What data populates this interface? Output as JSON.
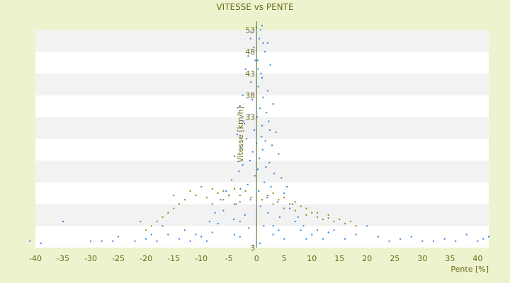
{
  "chart_data": {
    "type": "scatter",
    "title": "VITESSE vs PENTE",
    "xlabel": "Pente [%]",
    "ylabel": "Vitesse [km/h]",
    "xlim": [
      -40,
      42
    ],
    "ylim": [
      3,
      55
    ],
    "x_ticks": [
      -40,
      -35,
      -30,
      -25,
      -20,
      -15,
      -10,
      -5,
      0,
      5,
      10,
      15,
      20,
      25,
      30,
      35,
      40
    ],
    "y_ticks": [
      3,
      8,
      13,
      18,
      23,
      28,
      33,
      38,
      43,
      48,
      53
    ],
    "y_tick_labels_visible": [
      "3",
      "",
      "",
      "",
      "",
      "",
      "33",
      "38",
      "43",
      "48",
      "53"
    ],
    "grid": "horizontal bands",
    "legend": "none",
    "colors": {
      "background": "#eef3cf",
      "plot_band_light": "#ffffff",
      "plot_band_dark": "#f2f2f2",
      "main_series": "#2e86de",
      "secondary_series": "#8a8a1a",
      "axis_text": "#6b6b1a",
      "zero_line": "#4f6b2a"
    },
    "series": [
      {
        "color": "#2e86de",
        "points": [
          [
            0,
            53.5
          ],
          [
            1,
            54
          ],
          [
            -1,
            52.5
          ],
          [
            0.5,
            51
          ],
          [
            2,
            50
          ],
          [
            -0.5,
            49
          ],
          [
            1.5,
            48
          ],
          [
            -1.5,
            47
          ],
          [
            0.2,
            46
          ],
          [
            2.5,
            45
          ],
          [
            -2,
            44
          ],
          [
            0.8,
            43
          ],
          [
            1,
            42
          ],
          [
            -1,
            41
          ],
          [
            0.3,
            40
          ],
          [
            2,
            39
          ],
          [
            -2.5,
            38
          ],
          [
            1.2,
            37.5
          ],
          [
            -0.8,
            37
          ],
          [
            3,
            36
          ],
          [
            -3,
            35.5
          ],
          [
            0.6,
            35
          ],
          [
            1.8,
            34
          ],
          [
            -1.3,
            33.5
          ],
          [
            0.1,
            33
          ],
          [
            2.2,
            32
          ],
          [
            -2.2,
            31.5
          ],
          [
            1,
            31
          ],
          [
            -0.4,
            30
          ],
          [
            3.5,
            29.5
          ],
          [
            -3.5,
            29
          ],
          [
            0.9,
            28.5
          ],
          [
            -1.8,
            28
          ],
          [
            1.6,
            27.5
          ],
          [
            0,
            27
          ],
          [
            2.8,
            26.5
          ],
          [
            -2.8,
            26
          ],
          [
            1.1,
            25.5
          ],
          [
            -0.7,
            25
          ],
          [
            4,
            24.5
          ],
          [
            -4,
            24
          ],
          [
            0.5,
            23.5
          ],
          [
            -1.2,
            23
          ],
          [
            2.3,
            22.5
          ],
          [
            -2.5,
            22
          ],
          [
            1.7,
            21.5
          ],
          [
            0.2,
            21
          ],
          [
            -3.2,
            20.5
          ],
          [
            3.2,
            20
          ],
          [
            -0.3,
            19.5
          ],
          [
            4.5,
            19
          ],
          [
            -4.5,
            18.5
          ],
          [
            1.4,
            18
          ],
          [
            -1.6,
            17.5
          ],
          [
            2.6,
            17
          ],
          [
            -2.9,
            16.5
          ],
          [
            0.4,
            16
          ],
          [
            5,
            15.5
          ],
          [
            -5,
            15
          ],
          [
            1.9,
            14.5
          ],
          [
            -1.1,
            14
          ],
          [
            3.8,
            13.5
          ],
          [
            -3.7,
            13
          ],
          [
            0.7,
            12.5
          ],
          [
            6,
            12
          ],
          [
            -6,
            11.5
          ],
          [
            2.1,
            11
          ],
          [
            -2.1,
            10.5
          ],
          [
            4.2,
            10
          ],
          [
            -4.1,
            9.5
          ],
          [
            7,
            9
          ],
          [
            -7,
            8.5
          ],
          [
            1.3,
            8
          ],
          [
            -1.4,
            7.5
          ],
          [
            8,
            7
          ],
          [
            -8,
            6.5
          ],
          [
            3,
            6
          ],
          [
            -3,
            5.5
          ],
          [
            9,
            5
          ],
          [
            -9,
            4.5
          ],
          [
            0.6,
            4
          ],
          [
            -0.6,
            3.5
          ],
          [
            10,
            6
          ],
          [
            -10,
            5.5
          ],
          [
            11,
            7
          ],
          [
            -11,
            6
          ],
          [
            12,
            5
          ],
          [
            -12,
            4.5
          ],
          [
            13,
            6.5
          ],
          [
            -13,
            7
          ],
          [
            5.5,
            17
          ],
          [
            -5.5,
            16
          ],
          [
            6.5,
            13
          ],
          [
            -6.5,
            14
          ],
          [
            7.5,
            10
          ],
          [
            -7.5,
            11
          ],
          [
            8.5,
            8
          ],
          [
            -8.5,
            9
          ],
          [
            2.4,
            30
          ],
          [
            -2.4,
            32
          ],
          [
            0.3,
            44
          ],
          [
            -0.2,
            46
          ],
          [
            1.2,
            50
          ],
          [
            -1.1,
            51
          ],
          [
            0.7,
            53
          ],
          [
            3,
            8
          ],
          [
            -3,
            9
          ],
          [
            4,
            7
          ],
          [
            -4,
            6
          ],
          [
            5,
            5
          ],
          [
            -35,
            9
          ],
          [
            -30,
            4.5
          ],
          [
            -28,
            4.5
          ],
          [
            -26,
            4.5
          ],
          [
            -25,
            5.5
          ],
          [
            -22,
            4.5
          ],
          [
            -20,
            5
          ],
          [
            -18,
            4.5
          ],
          [
            -16,
            6
          ],
          [
            -14,
            5
          ],
          [
            22,
            5.5
          ],
          [
            24,
            4.5
          ],
          [
            26,
            5
          ],
          [
            28,
            5.5
          ],
          [
            30,
            4.5
          ],
          [
            32,
            4.5
          ],
          [
            34,
            5
          ],
          [
            36,
            4.5
          ],
          [
            38,
            6
          ],
          [
            40,
            4.5
          ],
          [
            41,
            5
          ],
          [
            42,
            5.5
          ],
          [
            -39,
            4
          ],
          [
            -41,
            4.5
          ],
          [
            20,
            8
          ],
          [
            18,
            6
          ],
          [
            16,
            5
          ],
          [
            14,
            7
          ],
          [
            -17,
            8
          ],
          [
            -19,
            6
          ]
        ]
      },
      {
        "color": "#8a8a1a",
        "points": [
          [
            -12,
            16
          ],
          [
            -11,
            15
          ],
          [
            -10,
            17
          ],
          [
            -9,
            14.5
          ],
          [
            -8,
            16.5
          ],
          [
            -7,
            15.5
          ],
          [
            -6,
            16
          ],
          [
            -5,
            15
          ],
          [
            -4,
            16.5
          ],
          [
            -3,
            15
          ],
          [
            -2,
            16
          ],
          [
            -1,
            14.5
          ],
          [
            1,
            14
          ],
          [
            2,
            15
          ],
          [
            3,
            13
          ],
          [
            4,
            14
          ],
          [
            5,
            12
          ],
          [
            6,
            13
          ],
          [
            7,
            11.5
          ],
          [
            8,
            12.5
          ],
          [
            9,
            10.5
          ],
          [
            10,
            11
          ],
          [
            11,
            10
          ],
          [
            12,
            9.5
          ],
          [
            13,
            10.5
          ],
          [
            14,
            9
          ],
          [
            15,
            9.5
          ],
          [
            16,
            8.5
          ],
          [
            17,
            9
          ],
          [
            18,
            8
          ],
          [
            -13,
            14
          ],
          [
            -14,
            13
          ],
          [
            -15,
            12
          ],
          [
            -16,
            11
          ],
          [
            -17,
            10
          ],
          [
            -18,
            9
          ],
          [
            -19,
            8
          ],
          [
            -20,
            7
          ],
          [
            -21,
            9
          ],
          [
            -15,
            15
          ],
          [
            -6,
            14
          ],
          [
            -4,
            13
          ],
          [
            -3,
            13.5
          ],
          [
            -8,
            13
          ],
          [
            3,
            15.5
          ],
          [
            5,
            14.5
          ],
          [
            7,
            13.5
          ],
          [
            9,
            12
          ],
          [
            11,
            11
          ],
          [
            13,
            9.8
          ]
        ]
      }
    ]
  }
}
